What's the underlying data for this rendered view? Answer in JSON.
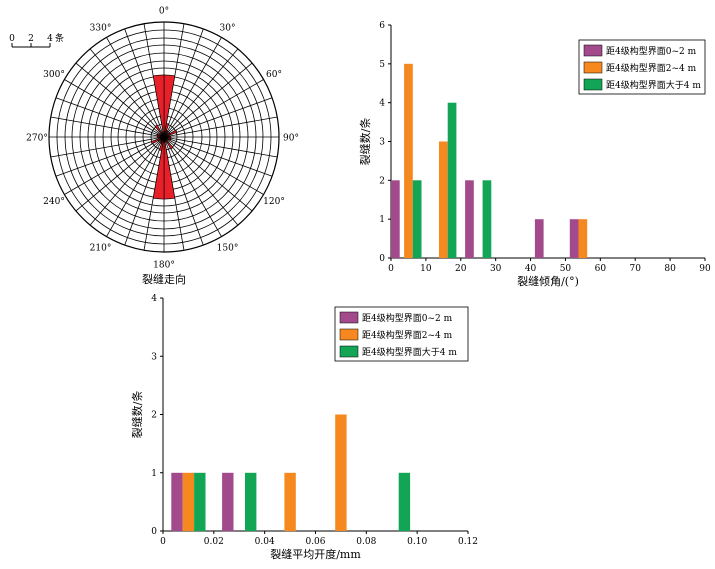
{
  "chart_data": [
    {
      "type": "rose",
      "xlabel": "裂缝走向",
      "angle_labels": [
        "0°",
        "30°",
        "60°",
        "90°",
        "120°",
        "150°",
        "180°",
        "210°",
        "240°",
        "270°",
        "300°",
        "330°"
      ],
      "scale_bar": {
        "ticks": [
          "0",
          "2",
          "4"
        ],
        "unit": "条"
      },
      "bin_width_deg": 10,
      "petals": [
        {
          "start": 0,
          "end": 10,
          "value": 4.5
        },
        {
          "start": 10,
          "end": 20,
          "value": 1
        },
        {
          "start": 20,
          "end": 30,
          "value": 0.5
        },
        {
          "start": 30,
          "end": 40,
          "value": 0.5
        },
        {
          "start": 50,
          "end": 60,
          "value": 0.5
        },
        {
          "start": 60,
          "end": 70,
          "value": 1
        },
        {
          "start": 80,
          "end": 90,
          "value": 0.5
        },
        {
          "start": 90,
          "end": 100,
          "value": 0.5
        },
        {
          "start": 100,
          "end": 110,
          "value": 0.5
        },
        {
          "start": 110,
          "end": 120,
          "value": 0.5
        },
        {
          "start": 140,
          "end": 150,
          "value": 1
        },
        {
          "start": 170,
          "end": 180,
          "value": 4.5
        },
        {
          "start": 180,
          "end": 190,
          "value": 4.5
        },
        {
          "start": 190,
          "end": 200,
          "value": 1
        },
        {
          "start": 200,
          "end": 210,
          "value": 0.5
        },
        {
          "start": 210,
          "end": 220,
          "value": 0.5
        },
        {
          "start": 230,
          "end": 240,
          "value": 0.5
        },
        {
          "start": 240,
          "end": 250,
          "value": 1
        },
        {
          "start": 260,
          "end": 270,
          "value": 0.5
        },
        {
          "start": 270,
          "end": 280,
          "value": 0.5
        },
        {
          "start": 280,
          "end": 290,
          "value": 0.5
        },
        {
          "start": 290,
          "end": 300,
          "value": 0.5
        },
        {
          "start": 320,
          "end": 330,
          "value": 1
        },
        {
          "start": 350,
          "end": 360,
          "value": 4.5
        }
      ],
      "color": "#e8202a"
    },
    {
      "type": "bar",
      "xlabel": "裂缝倾角/(°)",
      "ylabel": "裂缝数/条",
      "xlim": [
        0,
        90
      ],
      "ylim": [
        0,
        6
      ],
      "xticks": [
        "0",
        "10",
        "20",
        "30",
        "40",
        "50",
        "60",
        "70",
        "80",
        "90"
      ],
      "yticks": [
        "0",
        "1",
        "2",
        "3",
        "4",
        "5",
        "6"
      ],
      "bin_width": 2.5,
      "legend": "top-right",
      "series": [
        {
          "name": "距4级构型界面0~2 m",
          "color": "#a24a8c",
          "points": [
            [
              1.25,
              2
            ],
            [
              22.5,
              2
            ],
            [
              42.5,
              1
            ],
            [
              52.5,
              1
            ]
          ]
        },
        {
          "name": "距4级构型界面2~4 m",
          "color": "#f5891f",
          "points": [
            [
              5,
              5
            ],
            [
              15,
              3
            ],
            [
              55,
              1
            ]
          ]
        },
        {
          "name": "距4级构型界面大于4 m",
          "color": "#12a556",
          "points": [
            [
              7.5,
              2
            ],
            [
              17.5,
              4
            ],
            [
              27.5,
              2
            ]
          ]
        }
      ]
    },
    {
      "type": "bar",
      "xlabel": "裂缝平均开度/mm",
      "ylabel": "裂缝数/条",
      "xlim": [
        0,
        0.12
      ],
      "ylim": [
        0,
        4
      ],
      "xticks": [
        "0",
        "0.02",
        "0.04",
        "0.06",
        "0.08",
        "0.10",
        "0.12"
      ],
      "yticks": [
        "0",
        "1",
        "2",
        "3",
        "4"
      ],
      "bin_width": 0.0045,
      "legend": "top-left",
      "series": [
        {
          "name": "距4级构型界面0~2 m",
          "color": "#a24a8c",
          "points": [
            [
              0.0055,
              1
            ],
            [
              0.0255,
              1
            ]
          ]
        },
        {
          "name": "距4级构型界面2~4 m",
          "color": "#f5891f",
          "points": [
            [
              0.01,
              1
            ],
            [
              0.05,
              1
            ],
            [
              0.07,
              2
            ]
          ]
        },
        {
          "name": "距4级构型界面大于4 m",
          "color": "#12a556",
          "points": [
            [
              0.0145,
              1
            ],
            [
              0.0345,
              1
            ],
            [
              0.095,
              1
            ]
          ]
        }
      ]
    }
  ]
}
